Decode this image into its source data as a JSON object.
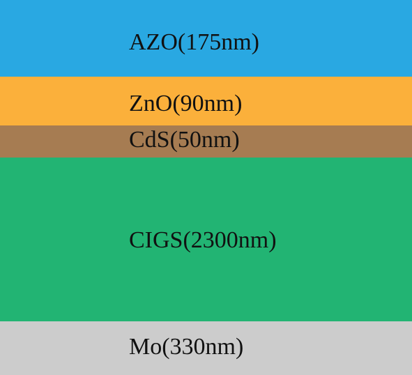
{
  "layers": [
    {
      "label": "AZO(175nm)",
      "color": "#29a8e2"
    },
    {
      "label": "ZnO(90nm)",
      "color": "#fbb03b"
    },
    {
      "label": "CdS(50nm)",
      "color": "#a67c52"
    },
    {
      "label": "CIGS(2300nm)",
      "color": "#22b473"
    },
    {
      "label": "Mo(330nm)",
      "color": "#cccccc"
    }
  ]
}
